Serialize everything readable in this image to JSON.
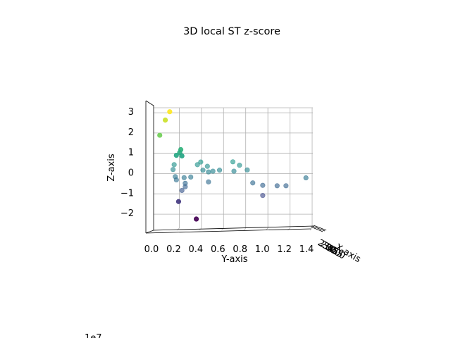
{
  "chart_data": {
    "type": "scatter",
    "title": "3D local ST z-score",
    "xlabel": "X-axis",
    "ylabel": "Y-axis",
    "zlabel": "Z-axis",
    "x_offset_text": "1e7",
    "colormap": "viridis",
    "grid": true,
    "y_ticks": [
      "0.0",
      "0.2",
      "0.4",
      "0.6",
      "0.8",
      "1.0",
      "1.2",
      "1.4"
    ],
    "z_ticks": [
      "3",
      "2",
      "1",
      "0",
      "−1",
      "−2"
    ],
    "x_tick_labels": [
      "2.0",
      "2.5",
      "3.0",
      "3.5",
      "4.0",
      "4.5",
      "5.0"
    ],
    "ylim": [
      0.0,
      1.4
    ],
    "zlim": [
      -2.6,
      3.1
    ],
    "points": [
      {
        "y": 0.03,
        "z": 1.82
      },
      {
        "y": 0.12,
        "z": 2.98
      },
      {
        "y": 0.08,
        "z": 2.57
      },
      {
        "y": 0.22,
        "z": 1.11
      },
      {
        "y": 0.21,
        "z": 0.97
      },
      {
        "y": 0.18,
        "z": 0.83
      },
      {
        "y": 0.23,
        "z": 0.8
      },
      {
        "y": 0.16,
        "z": 0.37
      },
      {
        "y": 0.15,
        "z": 0.13
      },
      {
        "y": 0.17,
        "z": -0.22
      },
      {
        "y": 0.18,
        "z": -0.38
      },
      {
        "y": 0.25,
        "z": -0.27
      },
      {
        "y": 0.31,
        "z": -0.24
      },
      {
        "y": 0.26,
        "z": -0.55
      },
      {
        "y": 0.26,
        "z": -0.72
      },
      {
        "y": 0.23,
        "z": -0.9
      },
      {
        "y": 0.2,
        "z": -1.45
      },
      {
        "y": 0.36,
        "z": -2.31
      },
      {
        "y": 0.37,
        "z": 0.37
      },
      {
        "y": 0.4,
        "z": 0.5
      },
      {
        "y": 0.42,
        "z": 0.1
      },
      {
        "y": 0.46,
        "z": 0.29
      },
      {
        "y": 0.47,
        "z": 0.01
      },
      {
        "y": 0.51,
        "z": 0.05
      },
      {
        "y": 0.57,
        "z": 0.1
      },
      {
        "y": 0.47,
        "z": -0.48
      },
      {
        "y": 0.69,
        "z": 0.51
      },
      {
        "y": 0.75,
        "z": 0.34
      },
      {
        "y": 0.7,
        "z": 0.05
      },
      {
        "y": 0.82,
        "z": 0.11
      },
      {
        "y": 0.87,
        "z": -0.53
      },
      {
        "y": 1.09,
        "z": -0.67
      },
      {
        "y": 1.17,
        "z": -0.67
      },
      {
        "y": 1.35,
        "z": -0.28
      },
      {
        "y": 0.96,
        "z": -0.65
      },
      {
        "y": 0.96,
        "z": -1.15
      }
    ]
  }
}
